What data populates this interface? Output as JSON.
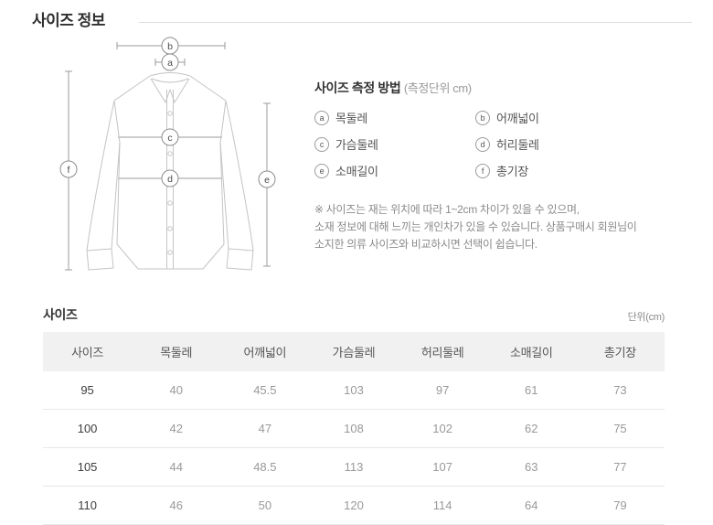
{
  "page": {
    "title": "사이즈 정보"
  },
  "measure_guide": {
    "heading": "사이즈 측정 방법",
    "heading_unit": "(측정단위 cm)",
    "items": [
      {
        "key": "a",
        "label": "목둘레"
      },
      {
        "key": "b",
        "label": "어깨넓이"
      },
      {
        "key": "c",
        "label": "가슴둘레"
      },
      {
        "key": "d",
        "label": "허리둘레"
      },
      {
        "key": "e",
        "label": "소매길이"
      },
      {
        "key": "f",
        "label": "총기장"
      }
    ],
    "note_lines": [
      "※ 사이즈는 재는 위치에 따라 1~2cm 차이가 있을 수 있으며,",
      "소재 정보에 대해 느끼는 개인차가 있을 수 있습니다. 상품구매시 회원님이",
      "소지한 의류 사이즈와 비교하시면 선택이 쉽습니다."
    ]
  },
  "size_table": {
    "section_title": "사이즈",
    "unit_label": "단위(cm)",
    "columns": [
      "사이즈",
      "목둘레",
      "어깨넓이",
      "가슴둘레",
      "허리둘레",
      "소매길이",
      "총기장"
    ],
    "rows": [
      [
        "95",
        "40",
        "45.5",
        "103",
        "97",
        "61",
        "73"
      ],
      [
        "100",
        "42",
        "47",
        "108",
        "102",
        "62",
        "75"
      ],
      [
        "105",
        "44",
        "48.5",
        "113",
        "107",
        "63",
        "77"
      ],
      [
        "110",
        "46",
        "50",
        "120",
        "114",
        "64",
        "79"
      ]
    ]
  },
  "colors": {
    "table_header_bg": "#f1f1f2",
    "row_border": "#e7e7e7",
    "title_text": "#2f2f2f",
    "muted_text": "#999999",
    "note_text": "#8a8a8a",
    "divider": "#dcdcdc",
    "shirt_outline": "#c4c4c4",
    "measure_line": "#9b9b9b"
  }
}
